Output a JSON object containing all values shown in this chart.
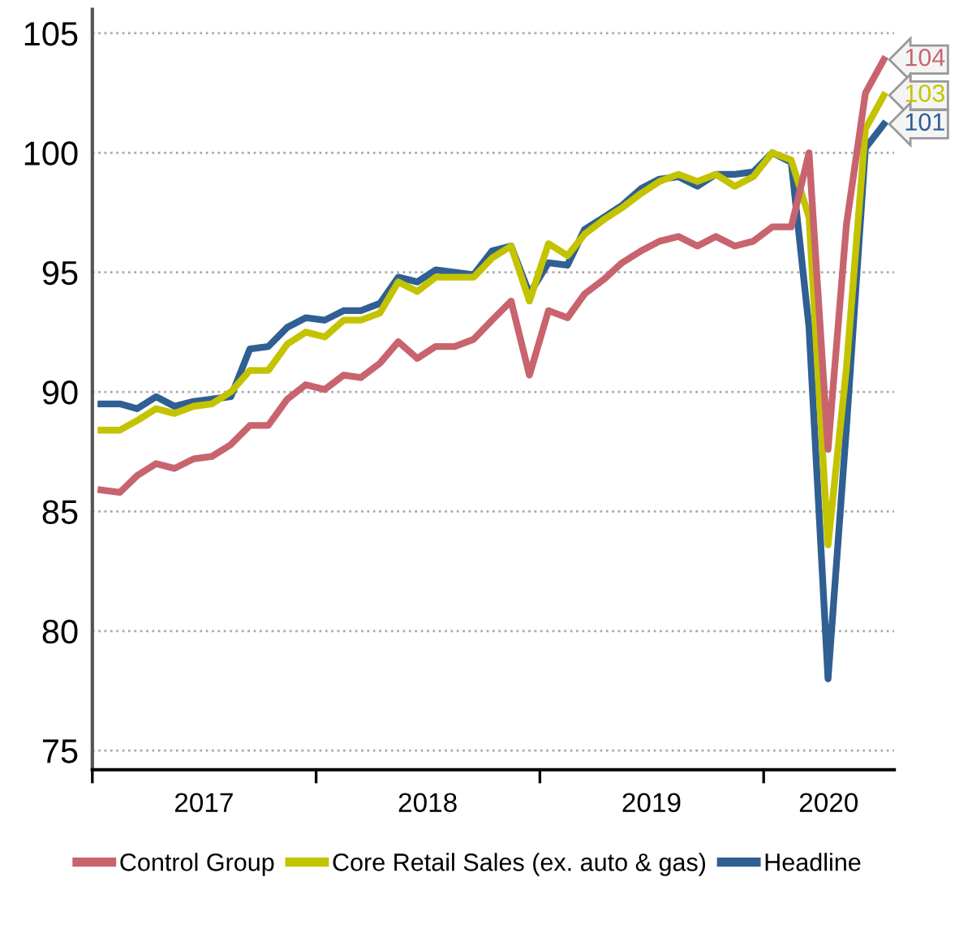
{
  "chart_data": {
    "type": "line",
    "x": [
      "2017-01-15",
      "2017-02-15",
      "2017-03-15",
      "2017-04-15",
      "2017-05-15",
      "2017-06-15",
      "2017-07-15",
      "2017-08-15",
      "2017-09-15",
      "2017-10-15",
      "2017-11-15",
      "2017-12-15",
      "2018-01-15",
      "2018-02-15",
      "2018-03-15",
      "2018-04-15",
      "2018-05-15",
      "2018-06-15",
      "2018-07-15",
      "2018-08-15",
      "2018-09-15",
      "2018-10-15",
      "2018-11-15",
      "2018-12-15",
      "2019-01-15",
      "2019-02-15",
      "2019-03-15",
      "2019-04-15",
      "2019-05-15",
      "2019-06-15",
      "2019-07-15",
      "2019-08-15",
      "2019-09-15",
      "2019-10-15",
      "2019-11-15",
      "2019-12-15",
      "2020-01-15",
      "2020-02-15",
      "2020-03-15",
      "2020-04-15",
      "2020-05-15",
      "2020-06-15",
      "2020-07-15"
    ],
    "series": [
      {
        "name": "Control Group",
        "color": "#c8646e",
        "values": [
          85.9,
          85.8,
          86.5,
          87.0,
          86.8,
          87.2,
          87.3,
          87.8,
          88.6,
          88.6,
          89.7,
          90.3,
          90.1,
          90.7,
          90.6,
          91.2,
          92.1,
          91.4,
          91.9,
          91.9,
          92.2,
          93.0,
          93.8,
          90.7,
          93.4,
          93.1,
          94.1,
          94.7,
          95.4,
          95.9,
          96.3,
          96.5,
          96.1,
          96.5,
          96.1,
          96.3,
          96.9,
          96.9,
          100.0,
          87.6,
          97.0,
          102.5,
          103.9
        ]
      },
      {
        "name": "Core Retail Sales (ex. auto & gas)",
        "color": "#c3c300",
        "values": [
          88.4,
          88.4,
          88.8,
          89.3,
          89.1,
          89.4,
          89.5,
          90.0,
          90.9,
          90.9,
          92.0,
          92.5,
          92.3,
          93.0,
          93.0,
          93.3,
          94.6,
          94.2,
          94.8,
          94.8,
          94.8,
          95.6,
          96.1,
          93.8,
          96.2,
          95.7,
          96.6,
          97.2,
          97.7,
          98.3,
          98.8,
          99.1,
          98.8,
          99.1,
          98.6,
          99.0,
          100.0,
          99.7,
          97.3,
          83.6,
          91.0,
          101.0,
          102.4
        ]
      },
      {
        "name": "Headline",
        "color": "#2f5f93",
        "values": [
          89.5,
          89.5,
          89.3,
          89.8,
          89.4,
          89.6,
          89.7,
          89.8,
          91.8,
          91.9,
          92.7,
          93.1,
          93.0,
          93.4,
          93.4,
          93.7,
          94.8,
          94.6,
          95.1,
          95.0,
          94.9,
          95.9,
          96.1,
          94.1,
          95.4,
          95.3,
          96.8,
          97.3,
          97.8,
          98.5,
          98.9,
          99.0,
          98.6,
          99.1,
          99.1,
          99.2,
          100.0,
          99.6,
          92.7,
          78.0,
          88.5,
          100.2,
          101.2
        ]
      }
    ],
    "ylim": [
      74.2,
      106
    ],
    "yticks": [
      75,
      80,
      85,
      90,
      95,
      100,
      105
    ],
    "xlim": [
      "2017-01-01",
      "2020-08-01"
    ],
    "xticks": [
      {
        "value": "2017-01-01",
        "label": null
      },
      {
        "value": "2017-07-02",
        "label": "2017"
      },
      {
        "value": "2018-01-01",
        "label": null
      },
      {
        "value": "2018-07-02",
        "label": "2018"
      },
      {
        "value": "2019-01-01",
        "label": null
      },
      {
        "value": "2019-07-02",
        "label": "2019"
      },
      {
        "value": "2020-01-01",
        "label": null
      },
      {
        "value": "2020-04-16",
        "label": "2020"
      }
    ],
    "grid": "y",
    "legend": "bottom",
    "marker": "none",
    "line_style": "solid",
    "annotations": [
      {
        "text": "104",
        "x": "2020-07-15",
        "y": 103.9
      },
      {
        "text": "103",
        "x": "2020-07-15",
        "y": 102.4
      },
      {
        "text": "101",
        "x": "2020-07-15",
        "y": 101.2
      }
    ]
  }
}
